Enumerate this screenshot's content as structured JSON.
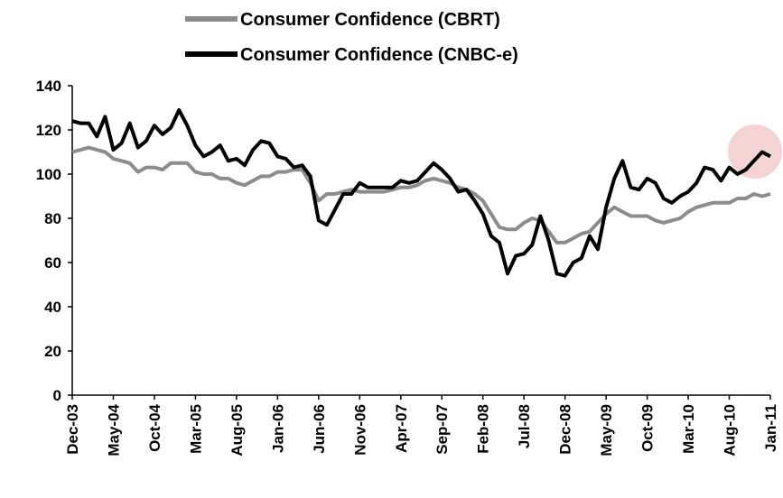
{
  "chart_data": {
    "type": "line",
    "categories": [
      "Dec-03",
      null,
      null,
      null,
      null,
      "May-04",
      null,
      null,
      null,
      null,
      "Oct-04",
      null,
      null,
      null,
      null,
      "Mar-05",
      null,
      null,
      null,
      null,
      "Aug-05",
      null,
      null,
      null,
      null,
      "Jan-06",
      null,
      null,
      null,
      null,
      "Jun-06",
      null,
      null,
      null,
      null,
      "Nov-06",
      null,
      null,
      null,
      null,
      "Apr-07",
      null,
      null,
      null,
      null,
      "Sep-07",
      null,
      null,
      null,
      null,
      "Feb-08",
      null,
      null,
      null,
      null,
      "Jul-08",
      null,
      null,
      null,
      null,
      "Dec-08",
      null,
      null,
      null,
      null,
      "May-09",
      null,
      null,
      null,
      null,
      "Oct-09",
      null,
      null,
      null,
      null,
      "Mar-10",
      null,
      null,
      null,
      null,
      "Aug-10",
      null,
      null,
      null,
      null,
      "Jan-11"
    ],
    "series": [
      {
        "name": "Consumer Confidence (CBRT)",
        "color": "#8c8c8c",
        "values": [
          110,
          111,
          112,
          111,
          110,
          107,
          106,
          105,
          101,
          103,
          103,
          102,
          105,
          105,
          105,
          101,
          100,
          100,
          98,
          98,
          96,
          95,
          97,
          99,
          99,
          101,
          101,
          102,
          102,
          96,
          88,
          91,
          91,
          92,
          93,
          92,
          92,
          92,
          92,
          93,
          94,
          94,
          95,
          97,
          98,
          97,
          96,
          94,
          93,
          91,
          88,
          82,
          76,
          75,
          75,
          78,
          80,
          79,
          74,
          69,
          69,
          71,
          73,
          74,
          78,
          82,
          85,
          83,
          81,
          81,
          81,
          79,
          78,
          79,
          80,
          83,
          85,
          86,
          87,
          87,
          87,
          89,
          89,
          91,
          90,
          91
        ]
      },
      {
        "name": "Consumer Confidence (CNBC-e)",
        "color": "#000000",
        "values": [
          124,
          123,
          123,
          117,
          126,
          111,
          114,
          123,
          112,
          115,
          122,
          118,
          121,
          129,
          122,
          113,
          108,
          110,
          113,
          106,
          107,
          104,
          111,
          115,
          114,
          108,
          107,
          103,
          104,
          99,
          79,
          77,
          84,
          91,
          91,
          96,
          94,
          94,
          94,
          94,
          97,
          96,
          97,
          101,
          105,
          102,
          98,
          92,
          93,
          88,
          82,
          72,
          69,
          55,
          63,
          64,
          68,
          81,
          70,
          55,
          54,
          60,
          62,
          72,
          66,
          85,
          98,
          106,
          94,
          93,
          98,
          96,
          89,
          87,
          90,
          92,
          96,
          103,
          102,
          97,
          103,
          100,
          102,
          106,
          110,
          108
        ]
      }
    ],
    "ylim": [
      0,
      140
    ],
    "yticks": [
      0,
      20,
      40,
      60,
      80,
      100,
      120,
      140
    ]
  }
}
